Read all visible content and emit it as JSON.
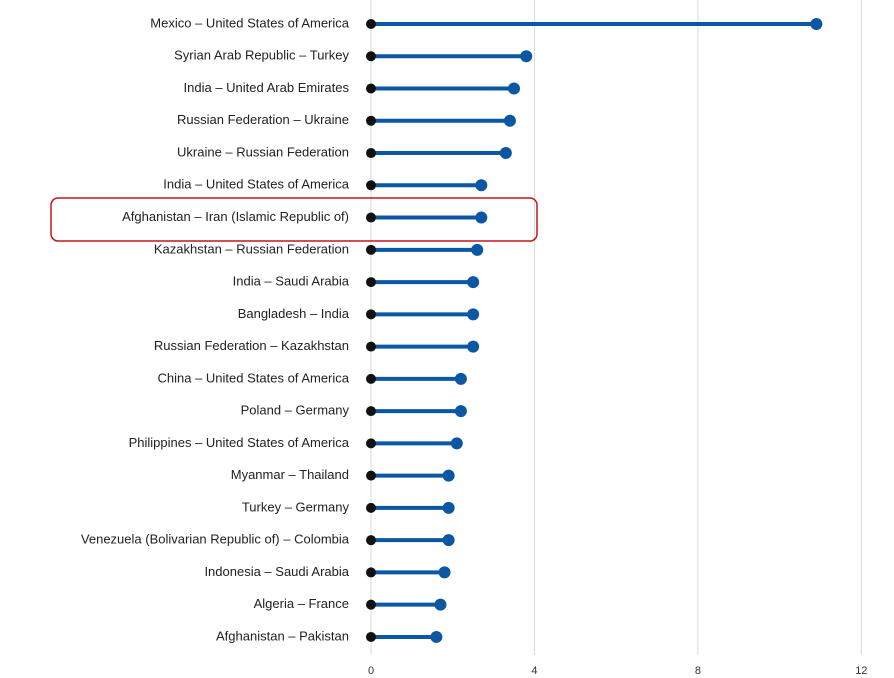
{
  "chart_data": {
    "type": "lollipop",
    "orientation": "horizontal",
    "categories": [
      "Mexico – United States of America",
      "Syrian Arab Republic – Turkey",
      "India – United Arab Emirates",
      "Russian Federation – Ukraine",
      "Ukraine – Russian Federation",
      "India – United States of America",
      "Afghanistan – Iran (Islamic Republic of)",
      "Kazakhstan – Russian Federation",
      "India – Saudi Arabia",
      "Bangladesh – India",
      "Russian Federation – Kazakhstan",
      "China – United States of America",
      "Poland – Germany",
      "Philippines – United States of America",
      "Myanmar – Thailand",
      "Turkey – Germany",
      "Venezuela (Bolivarian Republic of) – Colombia",
      "Indonesia – Saudi Arabia",
      "Algeria – France",
      "Afghanistan – Pakistan"
    ],
    "values": [
      10.9,
      3.8,
      3.5,
      3.4,
      3.3,
      2.7,
      2.7,
      2.6,
      2.5,
      2.5,
      2.5,
      2.2,
      2.2,
      2.1,
      1.9,
      1.9,
      1.9,
      1.8,
      1.7,
      1.6
    ],
    "color": "#0b57a4",
    "xlim": [
      0,
      12.8
    ],
    "xticks": [
      0,
      4,
      8,
      12
    ],
    "grid": true
  }
}
